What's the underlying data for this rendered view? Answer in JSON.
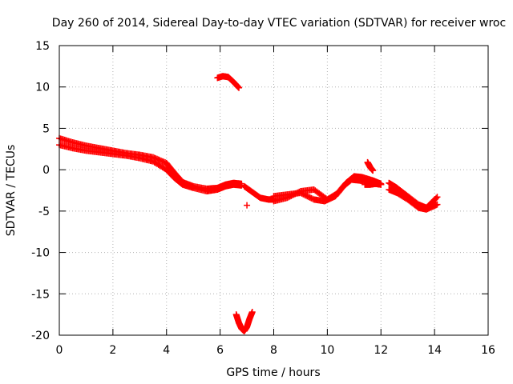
{
  "chart_data": {
    "type": "scatter",
    "title": "Day 260 of 2014, Sidereal Day-to-day VTEC variation (SDTVAR) for receiver wroc",
    "xlabel": "GPS time / hours",
    "ylabel": "SDTVAR / TECUs",
    "xlim": [
      0,
      16
    ],
    "ylim": [
      -20,
      15
    ],
    "grid": true,
    "x_ticks": [
      0,
      2,
      4,
      6,
      8,
      10,
      12,
      14,
      16
    ],
    "y_ticks": [
      15,
      10,
      5,
      0,
      -5,
      -10,
      -15,
      -20
    ],
    "series": [
      {
        "name": "SDTVAR",
        "color": "#ff0000",
        "marker": "+",
        "tracks": [
          {
            "x": [
              0.0,
              0.5,
              1.0,
              1.5,
              2.0,
              2.5,
              3.0,
              3.5,
              4.0,
              4.3,
              4.6,
              5.0,
              5.5,
              5.9,
              6.2,
              6.5,
              6.8
            ],
            "y": [
              3.8,
              3.3,
              2.9,
              2.6,
              2.3,
              2.0,
              1.8,
              1.5,
              0.8,
              -0.4,
              -1.5,
              -2.0,
              -2.3,
              -2.2,
              -1.8,
              -1.6,
              -1.7
            ]
          },
          {
            "x": [
              0.0,
              0.5,
              1.0,
              1.5,
              2.0,
              2.5,
              3.0,
              3.5,
              4.0,
              4.3,
              4.6,
              5.0,
              5.5,
              5.9,
              6.2,
              6.5,
              6.8
            ],
            "y": [
              3.0,
              2.6,
              2.3,
              2.1,
              1.9,
              1.7,
              1.4,
              1.0,
              0.0,
              -1.0,
              -1.8,
              -2.2,
              -2.6,
              -2.4,
              -2.0,
              -1.8,
              -1.9
            ]
          },
          {
            "x": [
              6.9,
              7.2,
              7.5,
              7.8,
              8.0
            ],
            "y": [
              -2.0,
              -2.7,
              -3.4,
              -3.6,
              -3.6
            ]
          },
          {
            "x": [
              7.0
            ],
            "y": [
              -4.3
            ]
          },
          {
            "x": [
              8.0,
              8.5,
              9.0,
              9.5,
              9.9,
              10.3,
              10.6,
              10.9,
              11.2,
              11.6,
              12.0
            ],
            "y": [
              -3.2,
              -3.0,
              -2.8,
              -3.6,
              -3.8,
              -3.2,
              -2.0,
              -1.2,
              -1.3,
              -1.6,
              -1.8
            ]
          },
          {
            "x": [
              8.0,
              8.5,
              9.0,
              9.5,
              10.0,
              10.4,
              10.7,
              11.0,
              11.3,
              11.7,
              12.0
            ],
            "y": [
              -3.8,
              -3.4,
              -2.6,
              -2.4,
              -3.6,
              -2.8,
              -1.6,
              -0.8,
              -0.9,
              -1.3,
              -1.7
            ]
          },
          {
            "x": [
              12.3,
              12.6,
              13.0,
              13.4,
              13.7,
              14.1
            ],
            "y": [
              -1.6,
              -2.2,
              -3.2,
              -4.2,
              -4.6,
              -3.3
            ]
          },
          {
            "x": [
              12.3,
              12.6,
              13.0,
              13.4,
              13.7,
              14.1
            ],
            "y": [
              -2.4,
              -2.8,
              -3.6,
              -4.6,
              -4.8,
              -4.2
            ]
          },
          {
            "x": [
              5.9,
              6.1,
              6.3,
              6.5,
              6.7
            ],
            "y": [
              11.1,
              11.3,
              11.2,
              10.6,
              9.9
            ]
          },
          {
            "x": [
              6.6,
              6.7,
              6.8,
              6.9,
              7.0,
              7.1,
              7.2
            ],
            "y": [
              -17.5,
              -18.5,
              -19.2,
              -19.5,
              -19.0,
              -18.0,
              -17.2
            ]
          },
          {
            "x": [
              11.5,
              11.6,
              11.7
            ],
            "y": [
              0.9,
              0.3,
              -0.1
            ]
          },
          {
            "x": [
              11.4,
              11.6,
              11.8,
              12.0
            ],
            "y": [
              -1.8,
              -1.8,
              -1.7,
              -1.8
            ]
          }
        ]
      }
    ]
  }
}
